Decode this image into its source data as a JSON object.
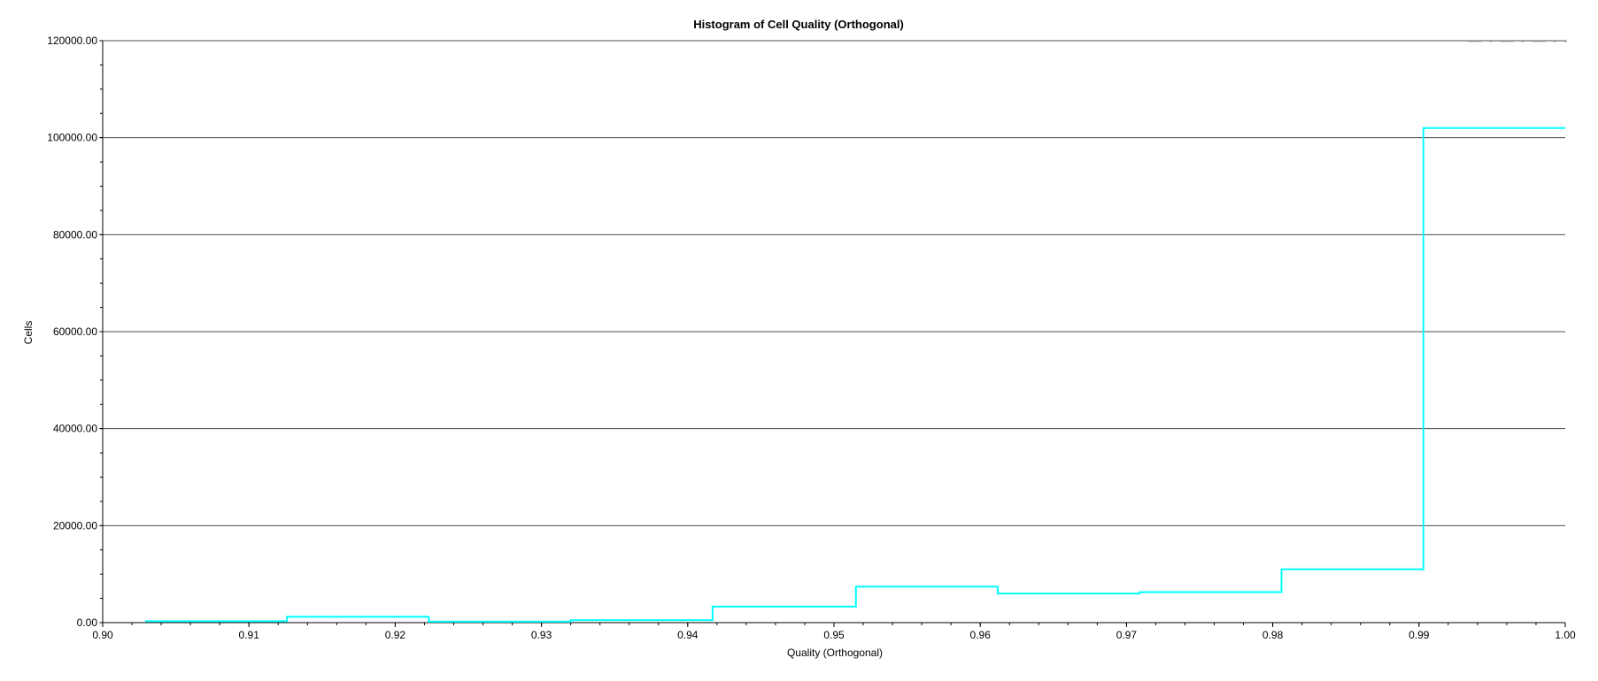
{
  "chart_data": {
    "type": "step",
    "title": "Histogram of Cell Quality (Orthogonal)",
    "xlabel": "Quality (Orthogonal)",
    "ylabel": "Cells",
    "xlim": [
      0.9,
      1.0
    ],
    "ylim": [
      0,
      120000
    ],
    "grid": "horizontal",
    "x_ticks": [
      "0.90",
      "0.91",
      "0.92",
      "0.93",
      "0.94",
      "0.95",
      "0.96",
      "0.97",
      "0.98",
      "0.99",
      "1.00"
    ],
    "y_ticks": [
      "0.00",
      "20000.00",
      "40000.00",
      "60000.00",
      "80000.00",
      "100000.00",
      "120000.00"
    ],
    "bins": [
      {
        "x_start": 0.9029,
        "x_end": 0.9126,
        "value": 300
      },
      {
        "x_start": 0.9126,
        "x_end": 0.9223,
        "value": 1200
      },
      {
        "x_start": 0.9223,
        "x_end": 0.932,
        "value": 200
      },
      {
        "x_start": 0.932,
        "x_end": 0.9417,
        "value": 500
      },
      {
        "x_start": 0.9417,
        "x_end": 0.9515,
        "value": 3300
      },
      {
        "x_start": 0.9515,
        "x_end": 0.9612,
        "value": 7400
      },
      {
        "x_start": 0.9612,
        "x_end": 0.9709,
        "value": 6000
      },
      {
        "x_start": 0.9709,
        "x_end": 0.9806,
        "value": 6300
      },
      {
        "x_start": 0.9806,
        "x_end": 0.9903,
        "value": 11000
      },
      {
        "x_start": 0.9903,
        "x_end": 1.0,
        "value": 102000
      }
    ],
    "line_color": "#00ffff",
    "grid_color": "#000000"
  }
}
